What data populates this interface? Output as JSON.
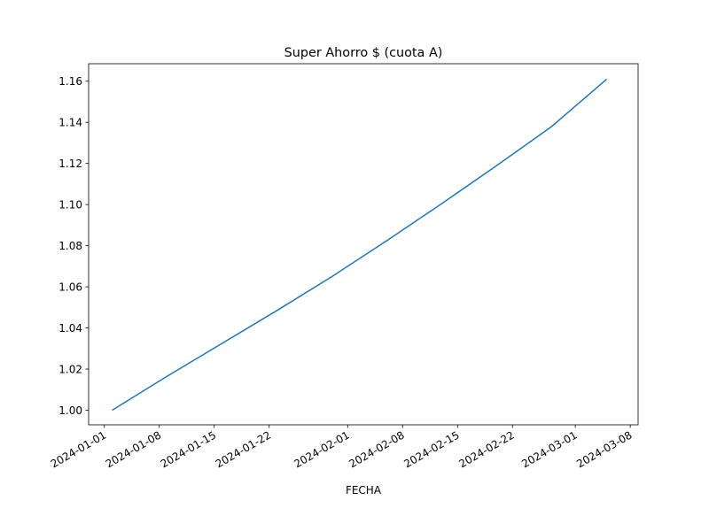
{
  "chart_data": {
    "type": "line",
    "title": "Super Ahorro $ (cuota A)",
    "xlabel": "FECHA",
    "ylabel": "",
    "x_type": "date",
    "xlim": [
      "2023-12-30",
      "2024-03-09"
    ],
    "ylim": [
      0.9929,
      1.1685
    ],
    "x_ticks": [
      "2024-01-01",
      "2024-01-08",
      "2024-01-15",
      "2024-01-22",
      "2024-02-01",
      "2024-02-08",
      "2024-02-15",
      "2024-02-22",
      "2024-03-01",
      "2024-03-08"
    ],
    "y_ticks": [
      "1.00",
      "1.02",
      "1.04",
      "1.06",
      "1.08",
      "1.10",
      "1.12",
      "1.14",
      "1.16"
    ],
    "grid": false,
    "legend": "none",
    "series": [
      {
        "color": "#1f77b4",
        "x": [
          "2024-01-02",
          "2024-01-09",
          "2024-01-16",
          "2024-01-23",
          "2024-01-30",
          "2024-02-06",
          "2024-02-13",
          "2024-02-20",
          "2024-02-27",
          "2024-03-05"
        ],
        "y": [
          1.0,
          1.0165,
          1.0325,
          1.0485,
          1.065,
          1.0825,
          1.1005,
          1.119,
          1.138,
          1.161
        ]
      }
    ]
  }
}
